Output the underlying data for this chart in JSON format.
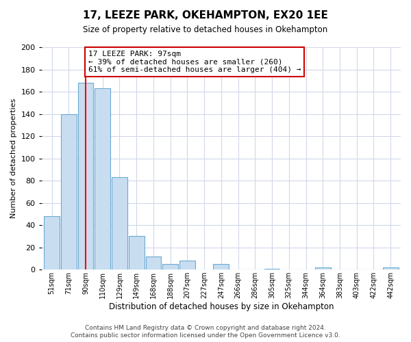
{
  "title": "17, LEEZE PARK, OKEHAMPTON, EX20 1EE",
  "subtitle": "Size of property relative to detached houses in Okehampton",
  "xlabel": "Distribution of detached houses by size in Okehampton",
  "ylabel": "Number of detached properties",
  "bar_labels": [
    "51sqm",
    "71sqm",
    "90sqm",
    "110sqm",
    "129sqm",
    "149sqm",
    "168sqm",
    "188sqm",
    "207sqm",
    "227sqm",
    "247sqm",
    "266sqm",
    "286sqm",
    "305sqm",
    "325sqm",
    "344sqm",
    "364sqm",
    "383sqm",
    "403sqm",
    "422sqm",
    "442sqm"
  ],
  "bar_values": [
    48,
    140,
    168,
    163,
    83,
    30,
    12,
    5,
    8,
    0,
    5,
    0,
    0,
    1,
    0,
    0,
    2,
    0,
    0,
    0,
    2
  ],
  "bar_color": "#c9ddf0",
  "bar_edge_color": "#6aaad4",
  "red_line_x": 2,
  "annotation_line1": "17 LEEZE PARK: 97sqm",
  "annotation_line2": "← 39% of detached houses are smaller (260)",
  "annotation_line3": "61% of semi-detached houses are larger (404) →",
  "annotation_box_color": "#ffffff",
  "annotation_box_edge": "#cc0000",
  "ylim": [
    0,
    200
  ],
  "yticks": [
    0,
    20,
    40,
    60,
    80,
    100,
    120,
    140,
    160,
    180,
    200
  ],
  "footer1": "Contains HM Land Registry data © Crown copyright and database right 2024.",
  "footer2": "Contains public sector information licensed under the Open Government Licence v3.0.",
  "bg_color": "#ffffff",
  "plot_bg_color": "#ffffff",
  "grid_color": "#d0d8e8"
}
